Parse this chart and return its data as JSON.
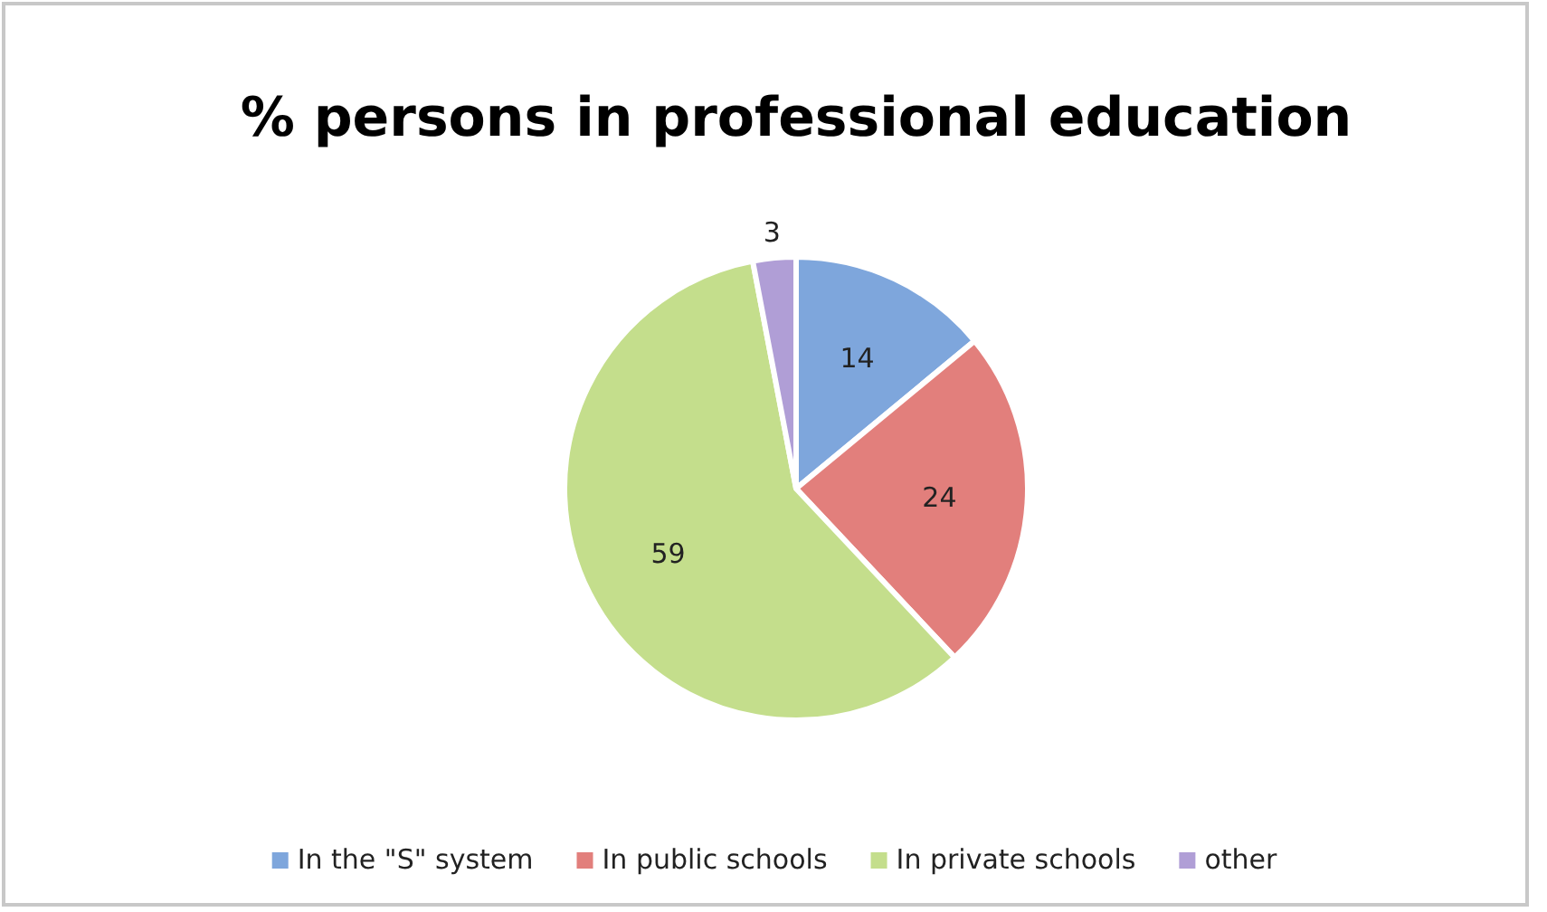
{
  "chart_data": {
    "type": "pie",
    "title": "% persons in professional education",
    "categories": [
      "In the \"S\" system",
      "In public schools",
      "In private schools",
      "other"
    ],
    "values": [
      14,
      24,
      59,
      3
    ],
    "colors": [
      "#7ea6dc",
      "#e27f7c",
      "#c4de8c",
      "#b09ed6"
    ],
    "data_labels": true,
    "legend": "bottom"
  }
}
